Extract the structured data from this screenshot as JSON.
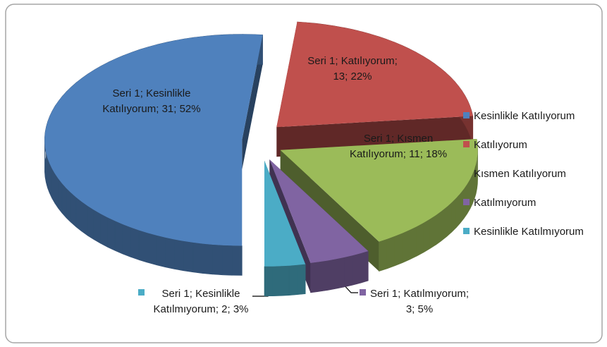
{
  "chart_data": {
    "type": "pie",
    "categories": [
      "Kesinlikle Katılıyorum",
      "Katılıyorum",
      "Kısmen Katılıyorum",
      "Katılmıyorum",
      "Kesinlikle Katılmıyorum"
    ],
    "values": [
      31,
      13,
      11,
      3,
      2
    ],
    "value_labels": [
      "Seri 1; Kesinlikle Katılıyorum; 31; 52%",
      "Seri 1; Katılıyorum; 13; 22%",
      "Seri 1; Kısmen Katılıyorum; 11; 18%",
      "Seri 1; Katılmıyorum; 3; 5%",
      "Seri 1; Kesinlikle Katılmıyorum; 2; 3%"
    ],
    "colors": [
      "#4f81bd",
      "#c0504d",
      "#9bbb59",
      "#8064a2",
      "#4bacc6"
    ],
    "legend": "right"
  }
}
